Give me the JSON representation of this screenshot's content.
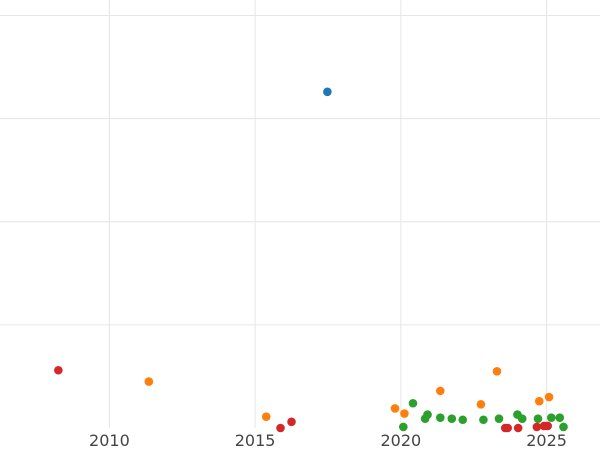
{
  "chart_data": {
    "type": "scatter",
    "title": "",
    "xlabel": "",
    "ylabel": "",
    "x_type": "date",
    "xlim": [
      "2006-04-01",
      "2026-11-01"
    ],
    "ylim": [
      0,
      4.15
    ],
    "x_ticks": [
      {
        "value": "2010-01-01",
        "label": "2010"
      },
      {
        "value": "2015-01-01",
        "label": "2015"
      },
      {
        "value": "2020-01-01",
        "label": "2020"
      },
      {
        "value": "2025-01-01",
        "label": "2025"
      }
    ],
    "y_gridlines": [
      1,
      2,
      3,
      4
    ],
    "grid": true,
    "legend": "none",
    "colors": {
      "blue": "#1f77b4",
      "orange": "#ff7f0e",
      "green": "#2ca02c",
      "red": "#d62728",
      "grid": "#e6e6e6",
      "tick_text": "#444444"
    },
    "series": [
      {
        "color": "#1f77b4",
        "points": [
          {
            "x": "2017-06-25",
            "y": 3.26
          }
        ]
      },
      {
        "color": "#ff7f0e",
        "points": [
          {
            "x": "2011-05-10",
            "y": 0.45
          },
          {
            "x": "2015-05-20",
            "y": 0.11
          },
          {
            "x": "2019-10-20",
            "y": 0.19
          },
          {
            "x": "2020-02-15",
            "y": 0.14
          },
          {
            "x": "2021-05-10",
            "y": 0.36
          },
          {
            "x": "2022-10-01",
            "y": 0.23
          },
          {
            "x": "2023-04-20",
            "y": 0.55
          },
          {
            "x": "2024-10-01",
            "y": 0.26
          },
          {
            "x": "2025-02-01",
            "y": 0.3
          }
        ]
      },
      {
        "color": "#2ca02c",
        "points": [
          {
            "x": "2020-02-01",
            "y": 0.01
          },
          {
            "x": "2020-06-01",
            "y": 0.24
          },
          {
            "x": "2020-11-01",
            "y": 0.09
          },
          {
            "x": "2020-12-01",
            "y": 0.13
          },
          {
            "x": "2021-05-10",
            "y": 0.1
          },
          {
            "x": "2021-10-01",
            "y": 0.09
          },
          {
            "x": "2022-02-15",
            "y": 0.08
          },
          {
            "x": "2022-11-01",
            "y": 0.08
          },
          {
            "x": "2023-05-15",
            "y": 0.09
          },
          {
            "x": "2024-01-01",
            "y": 0.13
          },
          {
            "x": "2024-03-01",
            "y": 0.09
          },
          {
            "x": "2024-09-15",
            "y": 0.09
          },
          {
            "x": "2025-03-01",
            "y": 0.1
          },
          {
            "x": "2025-06-15",
            "y": 0.1
          },
          {
            "x": "2025-08-01",
            "y": 0.01
          }
        ]
      },
      {
        "color": "#d62728",
        "points": [
          {
            "x": "2008-04-01",
            "y": 0.56
          },
          {
            "x": "2015-11-15",
            "y": 0.0
          },
          {
            "x": "2016-04-01",
            "y": 0.06
          },
          {
            "x": "2023-09-01",
            "y": 0.0
          },
          {
            "x": "2024-01-10",
            "y": 0.0
          },
          {
            "x": "2024-09-01",
            "y": 0.01
          },
          {
            "x": "2024-12-01",
            "y": 0.02
          },
          {
            "x": "2025-01-15",
            "y": 0.02
          },
          {
            "x": "2023-08-01",
            "y": 0.0
          }
        ]
      }
    ]
  }
}
